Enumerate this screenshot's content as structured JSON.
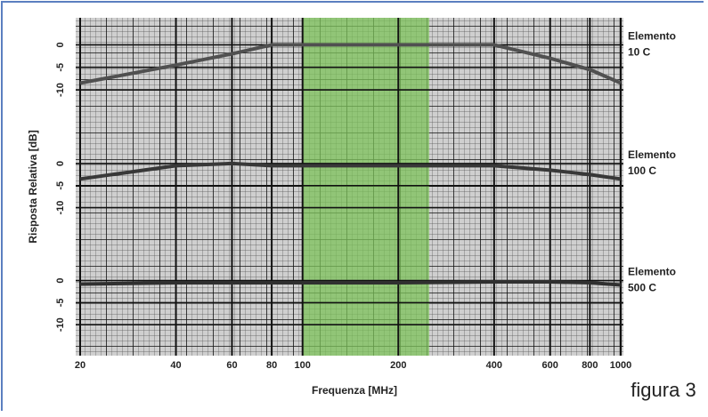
{
  "figure": {
    "caption": "figura 3"
  },
  "chart_data": {
    "type": "line",
    "x_label": "Frequenza [MHz]",
    "y_label": "Risposta Relativa [dB]",
    "log_x": true,
    "xlim": [
      20,
      1000
    ],
    "xticks": [
      20,
      40,
      60,
      80,
      100,
      200,
      400,
      600,
      800,
      1000
    ],
    "shaded_x": [
      100,
      250
    ],
    "shade_color": "#7cc25a",
    "x": [
      20,
      40,
      60,
      80,
      100,
      200,
      400,
      600,
      800,
      1000
    ],
    "panels": [
      {
        "label_lines": [
          "Elemento",
          "10 C"
        ],
        "color": "#505050",
        "ylim": [
          -19,
          6
        ],
        "yticks": [
          0,
          -5,
          -10
        ],
        "values": [
          -8.5,
          -4.5,
          -2,
          0,
          0,
          0,
          0,
          -3,
          -5.5,
          -8.5
        ]
      },
      {
        "label_lines": [
          "Elemento",
          "100 C"
        ],
        "color": "#383838",
        "ylim": [
          -18,
          7.5
        ],
        "yticks": [
          0,
          -5,
          -10
        ],
        "values": [
          -3.5,
          -0.5,
          0,
          -0.5,
          -0.5,
          -0.5,
          -0.5,
          -1.5,
          -2.5,
          -3.5
        ]
      },
      {
        "label_lines": [
          "Elemento",
          "500 C"
        ],
        "color": "#303030",
        "ylim": [
          -17,
          8.5
        ],
        "yticks": [
          0,
          -5,
          -10
        ],
        "values": [
          -0.8,
          -0.5,
          -0.5,
          -0.5,
          -0.5,
          -0.5,
          -0.3,
          -0.3,
          -0.5,
          -1
        ]
      }
    ]
  }
}
